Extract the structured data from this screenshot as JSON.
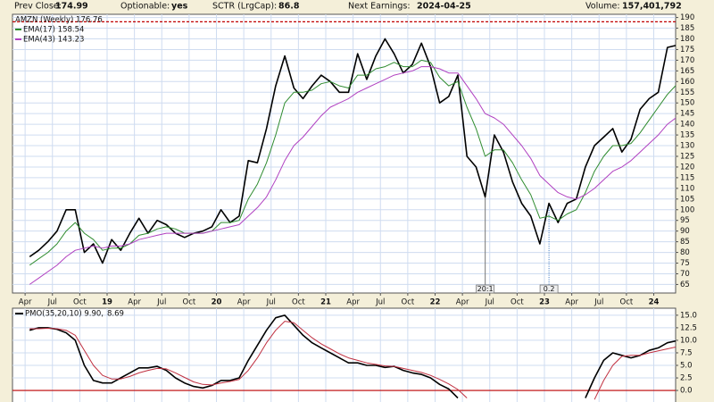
{
  "header": {
    "items": [
      {
        "label": "Prev Close:",
        "value": "174.99"
      },
      {
        "label": "Optionable:",
        "value": "yes"
      },
      {
        "label": "SCTR (LrgCap):",
        "value": "86.8"
      },
      {
        "label": "Next Earnings:",
        "value": "2024-04-25"
      },
      {
        "label": "Volume:",
        "value": "157,401,792"
      }
    ]
  },
  "chart_data": [
    {
      "type": "line",
      "x": [
        "2018-04",
        "2018-05",
        "2018-06",
        "2018-07",
        "2018-08",
        "2018-09",
        "2018-10",
        "2018-11",
        "2018-12",
        "2019-01",
        "2019-02",
        "2019-03",
        "2019-04",
        "2019-05",
        "2019-06",
        "2019-07",
        "2019-08",
        "2019-09",
        "2019-10",
        "2019-11",
        "2019-12",
        "2020-01",
        "2020-02",
        "2020-03",
        "2020-04",
        "2020-05",
        "2020-06",
        "2020-07",
        "2020-08",
        "2020-09",
        "2020-10",
        "2020-11",
        "2020-12",
        "2021-01",
        "2021-02",
        "2021-03",
        "2021-04",
        "2021-05",
        "2021-06",
        "2021-07",
        "2021-08",
        "2021-09",
        "2021-10",
        "2021-11",
        "2021-12",
        "2022-01",
        "2022-02",
        "2022-03",
        "2022-04",
        "2022-05",
        "2022-06",
        "2022-07",
        "2022-08",
        "2022-09",
        "2022-10",
        "2022-11",
        "2022-12",
        "2023-01",
        "2023-02",
        "2023-03",
        "2023-04",
        "2023-05",
        "2023-06",
        "2023-07",
        "2023-08",
        "2023-09",
        "2023-10",
        "2023-11",
        "2023-12",
        "2024-01",
        "2024-02",
        "2024-03"
      ],
      "series": [
        {
          "name": "AMZN (Weekly) 176.76",
          "color": "#000000",
          "width": 1.6,
          "values": [
            78,
            81,
            85,
            90,
            100,
            100,
            80,
            84,
            75,
            86,
            81,
            89,
            96,
            89,
            95,
            93,
            89,
            87,
            89,
            90,
            92,
            100,
            94,
            97,
            123,
            122,
            138,
            158,
            172,
            157,
            152,
            158,
            163,
            160,
            155,
            155,
            173,
            161,
            172,
            180,
            173,
            164,
            168,
            178,
            167,
            150,
            153,
            163,
            125,
            120,
            106,
            135,
            127,
            113,
            103,
            97,
            84,
            103,
            94,
            103,
            105,
            120,
            130,
            134,
            138,
            127,
            133,
            147,
            152,
            155,
            176,
            177
          ]
        },
        {
          "name": "EMA(17) 158.54",
          "color": "#2e8b2e",
          "width": 1,
          "values": [
            74,
            77,
            80,
            84,
            90,
            94,
            89,
            86,
            81,
            82,
            82,
            84,
            88,
            89,
            91,
            92,
            91,
            89,
            89,
            89,
            90,
            94,
            94,
            95,
            105,
            112,
            122,
            135,
            150,
            155,
            155,
            156,
            159,
            160,
            158,
            157,
            163,
            163,
            166,
            167,
            169,
            167,
            167,
            170,
            169,
            162,
            158,
            160,
            148,
            138,
            125,
            128,
            128,
            122,
            114,
            107,
            96,
            97,
            95,
            98,
            100,
            108,
            118,
            125,
            130,
            130,
            131,
            136,
            142,
            148,
            154,
            158.54
          ]
        },
        {
          "name": "EMA(43) 143.23",
          "color": "#b040c0",
          "width": 1,
          "values": [
            65,
            68,
            71,
            74,
            78,
            81,
            82,
            83,
            82,
            83,
            83,
            84,
            86,
            87,
            88,
            89,
            89,
            89,
            89,
            89,
            90,
            91,
            92,
            93,
            97,
            101,
            106,
            114,
            123,
            130,
            134,
            139,
            144,
            148,
            150,
            152,
            155,
            157,
            159,
            161,
            163,
            164,
            165,
            167,
            167,
            166,
            164,
            164,
            158,
            152,
            145,
            143,
            140,
            135,
            130,
            124,
            116,
            112,
            108,
            106,
            105,
            107,
            110,
            114,
            118,
            120,
            123,
            127,
            131,
            135,
            140,
            143.23
          ]
        }
      ],
      "ylim": [
        61,
        191.5
      ],
      "yticks": [
        65,
        70,
        75,
        80,
        85,
        90,
        95,
        100,
        105,
        110,
        115,
        120,
        125,
        130,
        135,
        140,
        145,
        150,
        155,
        160,
        165,
        170,
        175,
        180,
        185,
        190
      ],
      "xticks": [
        {
          "value": "2018-04",
          "label": "Apr"
        },
        {
          "value": "2018-07",
          "label": "Jul"
        },
        {
          "value": "2018-10",
          "label": "Oct"
        },
        {
          "value": "2019-01",
          "label": "19"
        },
        {
          "value": "2019-04",
          "label": "Apr"
        },
        {
          "value": "2019-07",
          "label": "Jul"
        },
        {
          "value": "2019-10",
          "label": "Oct"
        },
        {
          "value": "2020-01",
          "label": "20"
        },
        {
          "value": "2020-04",
          "label": "Apr"
        },
        {
          "value": "2020-07",
          "label": "Jul"
        },
        {
          "value": "2020-10",
          "label": "Oct"
        },
        {
          "value": "2021-01",
          "label": "21"
        },
        {
          "value": "2021-04",
          "label": "Apr"
        },
        {
          "value": "2021-07",
          "label": "Jul"
        },
        {
          "value": "2021-10",
          "label": "Oct"
        },
        {
          "value": "2022-01",
          "label": "22"
        },
        {
          "value": "2022-04",
          "label": "Apr"
        },
        {
          "value": "2022-07",
          "label": "Jul"
        },
        {
          "value": "2022-10",
          "label": "Oct"
        },
        {
          "value": "2023-01",
          "label": "23"
        },
        {
          "value": "2023-04",
          "label": "Apr"
        },
        {
          "value": "2023-07",
          "label": "Jul"
        },
        {
          "value": "2023-10",
          "label": "Oct"
        },
        {
          "value": "2024-01",
          "label": "24"
        }
      ],
      "grid": true,
      "hlines": [
        {
          "value": 188,
          "color": "#c00000"
        }
      ],
      "annotations": [
        {
          "text": "20:1",
          "x": "2022-06",
          "color": "#777777"
        },
        {
          "text": "0.2",
          "x": "2023-01",
          "color": "#3070c0"
        }
      ]
    },
    {
      "type": "line",
      "series": [
        {
          "name": "PMO(35,20,10) 9.90,",
          "color": "#000000",
          "width": 1.6,
          "values": [
            12,
            12.5,
            12.5,
            12.2,
            11.5,
            10,
            5,
            2,
            1.5,
            1.5,
            2.5,
            3.5,
            4.5,
            4.5,
            4.8,
            4.0,
            2.5,
            1.5,
            0.8,
            0.5,
            1.0,
            2.0,
            2.0,
            2.5,
            6,
            9,
            12,
            14.5,
            15,
            13,
            11,
            9.5,
            8.5,
            7.5,
            6.5,
            5.5,
            5.5,
            5,
            5,
            4.6,
            4.8,
            4,
            3.5,
            3.2,
            2.5,
            1.2,
            0.3,
            -1.5,
            null,
            null,
            null,
            null,
            null,
            null,
            null,
            null,
            null,
            null,
            null,
            null,
            null,
            -1.5,
            2.5,
            6,
            7.5,
            7,
            6.5,
            7,
            8,
            8.5,
            9.5,
            9.9
          ]
        },
        {
          "name": "8.69",
          "color": "#c03040",
          "width": 1,
          "values": [
            12.3,
            12.3,
            12.4,
            12.3,
            12,
            11,
            8,
            5,
            3,
            2.3,
            2.3,
            2.8,
            3.5,
            4,
            4.4,
            4.3,
            3.5,
            2.6,
            1.7,
            1.2,
            1.1,
            1.5,
            1.8,
            2.2,
            4,
            6.5,
            9.5,
            12,
            13.8,
            13.5,
            12,
            10.5,
            9.3,
            8.3,
            7.3,
            6.5,
            6,
            5.5,
            5.2,
            4.9,
            4.8,
            4.4,
            4,
            3.6,
            3,
            2.2,
            1.3,
            0.2,
            -1.5,
            null,
            null,
            null,
            null,
            null,
            null,
            null,
            null,
            null,
            null,
            null,
            null,
            null,
            -1.8,
            2,
            5,
            6.8,
            7,
            7,
            7.5,
            7.9,
            8.3,
            8.69
          ]
        }
      ],
      "ylim": [
        -2.3,
        16.4
      ],
      "yticks": [
        {
          "value": 15,
          "label": "15.0"
        },
        {
          "value": 12.5,
          "label": "12.5"
        },
        {
          "value": 10,
          "label": "10.0"
        },
        {
          "value": 7.5,
          "label": "7.5"
        },
        {
          "value": 5,
          "label": "5.0"
        },
        {
          "value": 2.5,
          "label": "2.5"
        },
        {
          "value": 0,
          "label": "0.0"
        }
      ],
      "grid": true,
      "hlines": [
        {
          "value": 0,
          "color": "#c00000"
        }
      ]
    }
  ]
}
